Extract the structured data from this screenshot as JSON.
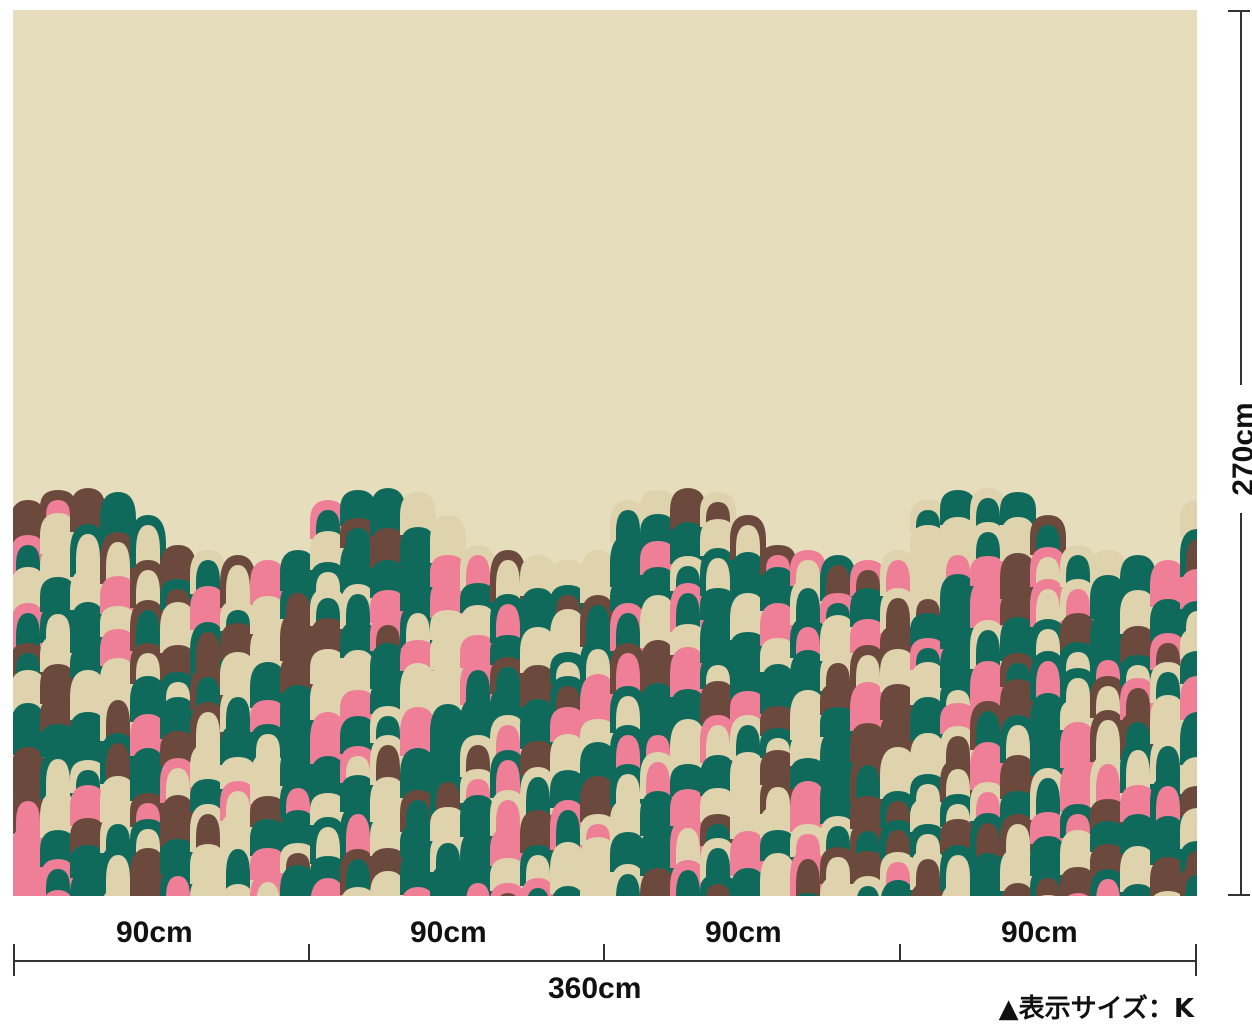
{
  "top_fragment": "ʿʿ",
  "fabric": {
    "colors": {
      "background": "#e6ddbd",
      "green": "#0f6a5c",
      "pink": "#ee7f97",
      "brown": "#6b4a3d",
      "cream": "#ded3ad"
    }
  },
  "dimensions": {
    "segments": [
      "90cm",
      "90cm",
      "90cm",
      "90cm"
    ],
    "total_width": "360cm",
    "height": "270cm"
  },
  "size_note": "▲表示サイズ：K"
}
